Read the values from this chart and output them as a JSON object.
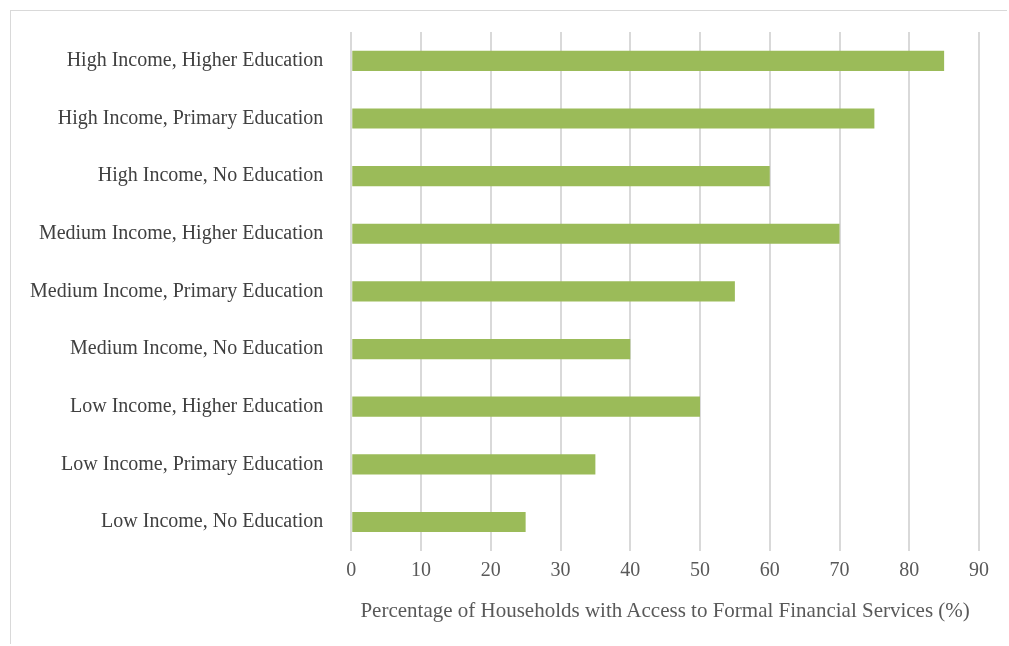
{
  "chart_data": {
    "type": "bar",
    "orientation": "horizontal",
    "xlabel": "Percentage of Households with Access to Formal Financial Services (%)",
    "categories": [
      "High Income, Higher Education",
      "High Income, Primary Education",
      "High Income, No Education",
      "Medium Income, Higher Education",
      "Medium Income, Primary Education",
      "Medium Income, No Education",
      "Low Income, Higher Education",
      "Low Income, Primary Education",
      "Low Income, No Education"
    ],
    "values": [
      85,
      75,
      60,
      70,
      55,
      40,
      50,
      35,
      25
    ],
    "color": "#9bbb59",
    "xlim": [
      0,
      90
    ],
    "xticks": [
      0,
      10,
      20,
      30,
      40,
      50,
      60,
      70,
      80,
      90
    ],
    "grid": "x",
    "legend": false
  }
}
